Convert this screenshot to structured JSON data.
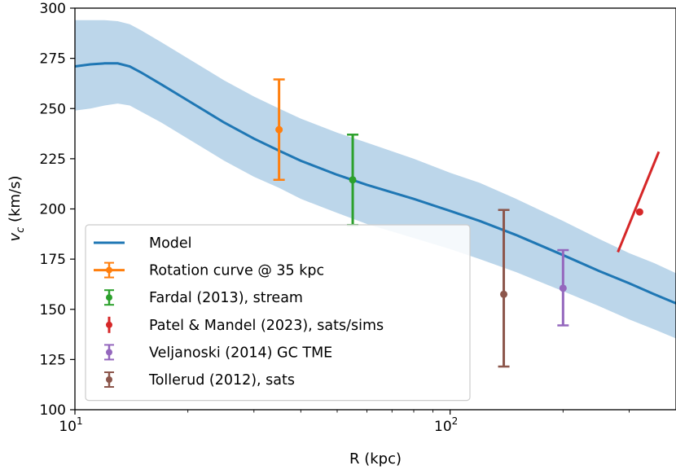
{
  "chart_data": {
    "type": "line",
    "title": "",
    "xlabel": "R (kpc)",
    "ylabel": "v_c (km/s)",
    "xscale": "log",
    "xlim": [
      10,
      400
    ],
    "ylim": [
      100,
      300
    ],
    "xticks_major": [
      {
        "value": 10,
        "base": "10",
        "exp": "1"
      },
      {
        "value": 100,
        "base": "10",
        "exp": "2"
      }
    ],
    "yticks": [
      100,
      125,
      150,
      175,
      200,
      225,
      250,
      275,
      300
    ],
    "grid": false,
    "legend_position": "lower-left",
    "colors": {
      "model": "#1f77b4",
      "band": "#bcd6ea",
      "rotation": "#ff7f0e",
      "fardal": "#2ca02c",
      "patel": "#d62728",
      "veljanoski": "#9467bd",
      "tollerud": "#8c564b"
    },
    "model": {
      "name": "Model",
      "x": [
        10,
        11,
        12,
        13,
        14,
        15,
        17,
        20,
        25,
        30,
        35,
        40,
        50,
        60,
        80,
        100,
        120,
        150,
        200,
        250,
        300,
        350,
        400
      ],
      "y": [
        271,
        272,
        272.5,
        272.5,
        271,
        268,
        262,
        254,
        243,
        235,
        229,
        224,
        217,
        212,
        205,
        199,
        194,
        187,
        177,
        169,
        163,
        157.5,
        153
      ],
      "upper": [
        294,
        294,
        294,
        293.5,
        292,
        289,
        283,
        275,
        264,
        256,
        250,
        245,
        238,
        233,
        225,
        218,
        213,
        205,
        194,
        185,
        178,
        173,
        168
      ],
      "lower": [
        249,
        250,
        251.5,
        252.5,
        251.5,
        248.5,
        243,
        235,
        224,
        216,
        210.5,
        205,
        198,
        192.5,
        185.5,
        180,
        175,
        168.5,
        159,
        151.5,
        145,
        140,
        135.5
      ]
    },
    "points": [
      {
        "name": "Rotation curve @ 35 kpc",
        "key": "rotation",
        "x": 35,
        "y": 239.5,
        "yerr_low": 214.5,
        "yerr_high": 264.5
      },
      {
        "name": "Fardal (2013), stream",
        "key": "fardal",
        "x": 55,
        "y": 214.5,
        "yerr_low": 192,
        "yerr_high": 237
      },
      {
        "name": "Patel & Mandel (2023), sats/sims",
        "key": "patel",
        "x": 320,
        "y": 198.5,
        "line_x": [
          280,
          360
        ],
        "line_y": [
          178.5,
          228.5
        ]
      },
      {
        "name": "Veljanoski (2014) GC TME",
        "key": "veljanoski",
        "x": 200,
        "y": 160.5,
        "yerr_low": 142,
        "yerr_high": 179.5
      },
      {
        "name": "Tollerud (2012), sats",
        "key": "tollerud",
        "x": 139,
        "y": 157.5,
        "yerr_low": 121.5,
        "yerr_high": 199.5
      }
    ],
    "legend": [
      {
        "label": "Model",
        "key": "model",
        "style": "line"
      },
      {
        "label": "Rotation curve @ 35 kpc",
        "key": "rotation",
        "style": "errorbar"
      },
      {
        "label": "Fardal (2013), stream",
        "key": "fardal",
        "style": "errorbar"
      },
      {
        "label": "Patel & Mandel (2023), sats/sims",
        "key": "patel",
        "style": "errorbar"
      },
      {
        "label": "Veljanoski (2014) GC TME",
        "key": "veljanoski",
        "style": "errorbar"
      },
      {
        "label": "Tollerud (2012), sats",
        "key": "tollerud",
        "style": "errorbar"
      }
    ]
  }
}
